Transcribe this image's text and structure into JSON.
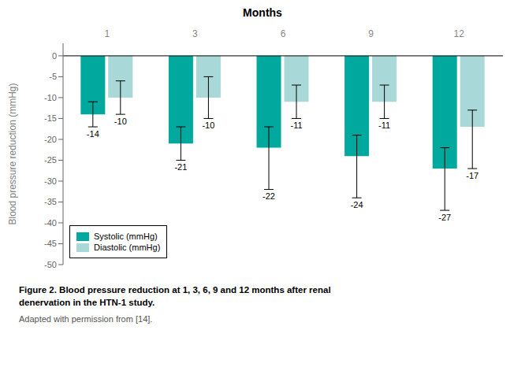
{
  "chart_data": {
    "type": "bar",
    "title": "Months",
    "ylabel": "Blood pressure reduction (mmHg)",
    "categories": [
      "1",
      "3",
      "6",
      "9",
      "12"
    ],
    "series": [
      {
        "name": "Systolic (mmHg)",
        "color": "#00A89D",
        "values": [
          -14,
          -21,
          -22,
          -24,
          -27
        ],
        "err_up": [
          3,
          4,
          5,
          5,
          5
        ],
        "err_dn": [
          3,
          4,
          10,
          10,
          10
        ]
      },
      {
        "name": "Diastolic (mmHg)",
        "color": "#A8D8D8",
        "values": [
          -10,
          -10,
          -11,
          -11,
          -17
        ],
        "err_up": [
          4,
          5,
          4,
          4,
          4
        ],
        "err_dn": [
          4,
          5,
          4,
          4,
          10
        ]
      }
    ],
    "ylim": [
      -50,
      3
    ],
    "yticks": [
      0,
      -5,
      -10,
      -15,
      -20,
      -25,
      -30,
      -35,
      -40,
      -45,
      -50
    ],
    "grid": false,
    "legend": "lower left",
    "data_labels": true,
    "annotations": [
      "Figure 2. Blood pressure reduction at 1, 3, 6, 9 and 12 months after renal\ndenervation in the HTN-1 study.",
      "Adapted with permission from [14]."
    ]
  }
}
